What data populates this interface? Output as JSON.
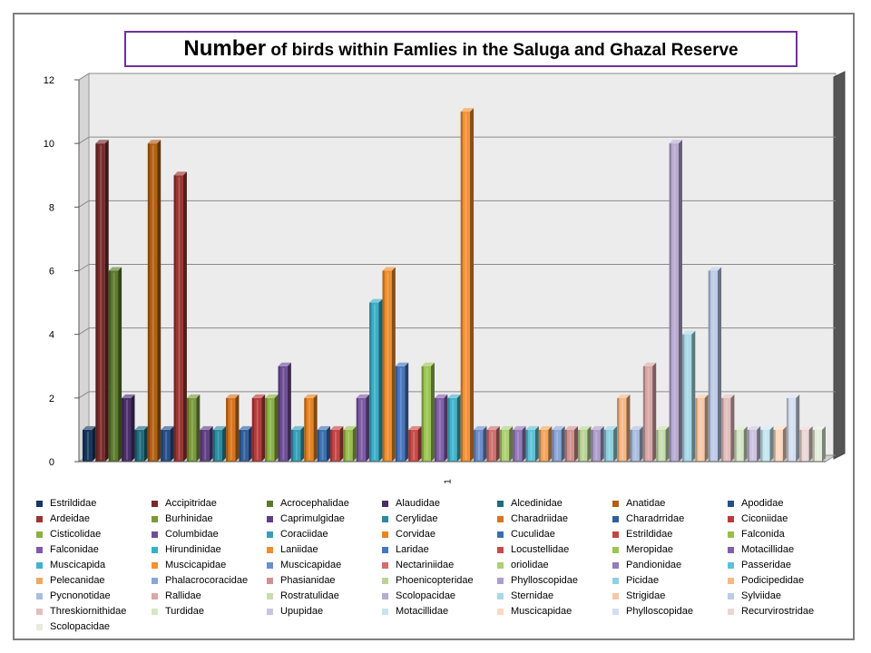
{
  "title": {
    "part1": "Number",
    "part2": " of birds within Famlies in the Saluga and Ghazal Reserve"
  },
  "chart_data": {
    "type": "bar",
    "title": "Number of birds within Famlies in the Saluga and Ghazal Reserve",
    "xlabel": "",
    "ylabel": "",
    "categories": [
      "1"
    ],
    "ylim": [
      0,
      12
    ],
    "yticks": [
      0,
      2,
      4,
      6,
      8,
      10,
      12
    ],
    "grid": true,
    "three_d": true,
    "legend_position": "bottom",
    "series": [
      {
        "name": "Estrildidae",
        "values": [
          1
        ],
        "color": "#17375e"
      },
      {
        "name": "Accipitridae",
        "values": [
          10
        ],
        "color": "#772a2a"
      },
      {
        "name": "Acrocephalidae",
        "values": [
          6
        ],
        "color": "#5c7a2b"
      },
      {
        "name": "Alaudidae",
        "values": [
          2
        ],
        "color": "#4a2f6a"
      },
      {
        "name": "Alcedinidae",
        "values": [
          1
        ],
        "color": "#1f6a7c"
      },
      {
        "name": "Anatidae",
        "values": [
          10
        ],
        "color": "#b35e16"
      },
      {
        "name": "Apodidae",
        "values": [
          1
        ],
        "color": "#264f86"
      },
      {
        "name": "Ardeidae",
        "values": [
          9
        ],
        "color": "#9b3432"
      },
      {
        "name": "Burhinidae",
        "values": [
          2
        ],
        "color": "#799a3b"
      },
      {
        "name": "Caprimulgidae",
        "values": [
          1
        ],
        "color": "#5f3f84"
      },
      {
        "name": "Cerylidae",
        "values": [
          1
        ],
        "color": "#2b8ba1"
      },
      {
        "name": "Charadriidae",
        "values": [
          2
        ],
        "color": "#d8741c"
      },
      {
        "name": "Charadrridae",
        "values": [
          1
        ],
        "color": "#2f5f9c"
      },
      {
        "name": "Ciconiidae",
        "values": [
          2
        ],
        "color": "#b83c3a"
      },
      {
        "name": "Cisticolidae",
        "values": [
          2
        ],
        "color": "#8db142"
      },
      {
        "name": "Columbidae",
        "values": [
          3
        ],
        "color": "#6f4d96"
      },
      {
        "name": "Coraciidae",
        "values": [
          1
        ],
        "color": "#33a0b8"
      },
      {
        "name": "Corvidae",
        "values": [
          2
        ],
        "color": "#e68322"
      },
      {
        "name": "Cuculidae",
        "values": [
          1
        ],
        "color": "#3a6fb0"
      },
      {
        "name": "Estrildidae",
        "values": [
          1
        ],
        "color": "#c44542"
      },
      {
        "name": "Falconida",
        "values": [
          1
        ],
        "color": "#98bf4d"
      },
      {
        "name": "Falconidae",
        "values": [
          2
        ],
        "color": "#7e5aa6"
      },
      {
        "name": "Hirundinidae",
        "values": [
          5
        ],
        "color": "#3aaec7"
      },
      {
        "name": "Laniidae",
        "values": [
          6
        ],
        "color": "#f08d2c"
      },
      {
        "name": "Laridae",
        "values": [
          3
        ],
        "color": "#4577c0"
      },
      {
        "name": "Locustellidae",
        "values": [
          1
        ],
        "color": "#c94b48"
      },
      {
        "name": "Meropidae",
        "values": [
          3
        ],
        "color": "#9cc552"
      },
      {
        "name": "Motacillidae",
        "values": [
          2
        ],
        "color": "#8260ab"
      },
      {
        "name": "Muscicapida",
        "values": [
          2
        ],
        "color": "#40b4cc"
      },
      {
        "name": "Muscicapidae",
        "values": [
          11
        ],
        "color": "#f39233"
      },
      {
        "name": "Muscicapidae",
        "values": [
          1
        ],
        "color": "#6b8fcc"
      },
      {
        "name": "Nectariniidae",
        "values": [
          1
        ],
        "color": "#d06f6d"
      },
      {
        "name": "oriolidae",
        "values": [
          1
        ],
        "color": "#acd072"
      },
      {
        "name": "Pandionidae",
        "values": [
          1
        ],
        "color": "#957bbb"
      },
      {
        "name": "Passeridae",
        "values": [
          1
        ],
        "color": "#5cc2d8"
      },
      {
        "name": "Pelecanidae",
        "values": [
          1
        ],
        "color": "#f5a55d"
      },
      {
        "name": "Phalacrocoracidae",
        "values": [
          1
        ],
        "color": "#8ba6d6"
      },
      {
        "name": "Phasianidae",
        "values": [
          1
        ],
        "color": "#cf918f"
      },
      {
        "name": "Phoenicopteridae",
        "values": [
          1
        ],
        "color": "#b9d596"
      },
      {
        "name": "Phylloscopidae",
        "values": [
          1
        ],
        "color": "#ad9dcb"
      },
      {
        "name": "Picidae",
        "values": [
          1
        ],
        "color": "#8fd0df"
      },
      {
        "name": "Podicipedidae",
        "values": [
          2
        ],
        "color": "#f6b887"
      },
      {
        "name": "Pycnonotidae",
        "values": [
          1
        ],
        "color": "#a9bddf"
      },
      {
        "name": "Rallidae",
        "values": [
          3
        ],
        "color": "#d9a8a6"
      },
      {
        "name": "Rostratulidae",
        "values": [
          1
        ],
        "color": "#c7ddae"
      },
      {
        "name": "Scolopacidae",
        "values": [
          10
        ],
        "color": "#b7abd2"
      },
      {
        "name": "Sternidae",
        "values": [
          4
        ],
        "color": "#a7dae6"
      },
      {
        "name": "Strigidae",
        "values": [
          2
        ],
        "color": "#f8c8a4"
      },
      {
        "name": "Sylviidae",
        "values": [
          6
        ],
        "color": "#bccbe6"
      },
      {
        "name": "Threskiornithidae",
        "values": [
          2
        ],
        "color": "#e2bebd"
      },
      {
        "name": "Turdidae",
        "values": [
          1
        ],
        "color": "#d6e6c5"
      },
      {
        "name": "Upupidae",
        "values": [
          1
        ],
        "color": "#ccc3e0"
      },
      {
        "name": "Motacillidae",
        "values": [
          1
        ],
        "color": "#c5e6ef"
      },
      {
        "name": "Muscicapidae",
        "values": [
          1
        ],
        "color": "#fbd8bf"
      },
      {
        "name": "Phylloscopidae",
        "values": [
          2
        ],
        "color": "#d5dff0"
      },
      {
        "name": "Recurvirostridae",
        "values": [
          1
        ],
        "color": "#ecd6d5"
      },
      {
        "name": "Scolopacidae",
        "values": [
          1
        ],
        "color": "#e4eedb"
      }
    ]
  }
}
